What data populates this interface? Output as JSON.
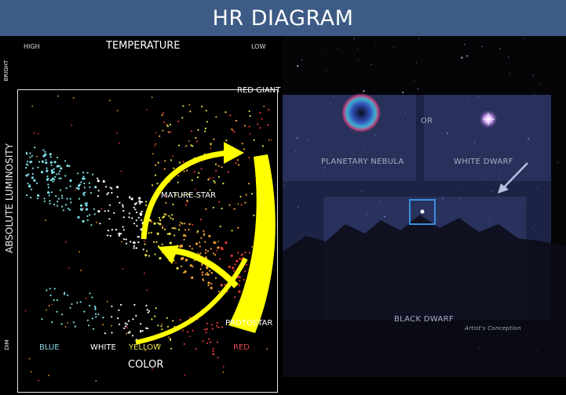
{
  "title": "HR DIAGRAM",
  "axes": {
    "top_label": "TEMPERATURE",
    "top_left": "HIGH",
    "top_right": "LOW",
    "left_label": "ABSOLUTE LUMINOSITY",
    "left_top": "BRIGHT",
    "left_bottom": "DIM",
    "bottom_label": "COLOR"
  },
  "color_labels": [
    {
      "text": "BLUE",
      "color": "#8fd8e8"
    },
    {
      "text": "WHITE",
      "color": "#ffffff"
    },
    {
      "text": "YELLOW",
      "color": "#e8e050"
    },
    {
      "text": "RED",
      "color": "#e04848"
    }
  ],
  "stages": {
    "red_giant": "RED GIANT",
    "mature_star": "MATURE STAR",
    "protostar": "PROTOSTAR"
  },
  "right_panel": {
    "or": "OR",
    "planetary_nebula": "PLANETARY NEBULA",
    "white_dwarf": "WHITE DWARF",
    "black_dwarf": "BLACK DWARF",
    "credit": "Artist's Conception"
  },
  "colors": {
    "header_bg": "#3d5b85",
    "arrow": "#ffff00",
    "blue_star": "#7fe0e8",
    "white_star": "#ffffff",
    "yellow_star": "#e8e040",
    "orange_star": "#f0a030",
    "red_star": "#e03838"
  }
}
